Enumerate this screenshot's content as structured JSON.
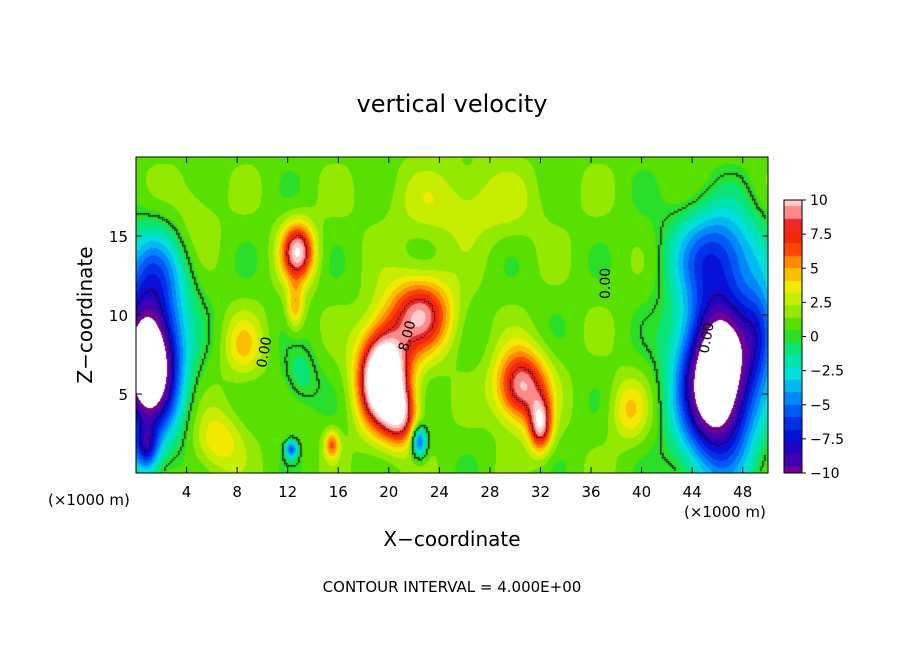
{
  "chart_data": {
    "type": "heatmap",
    "title": "vertical velocity",
    "xlabel": "X−coordinate",
    "ylabel": "Z−coordinate",
    "x_unit_left": "(×1000 m)",
    "x_unit_right": "(×1000 m)",
    "footer": "CONTOUR INTERVAL = 4.000E+00",
    "xlim": [
      0,
      50
    ],
    "ylim": [
      0,
      20
    ],
    "x_ticks": [
      4,
      8,
      12,
      16,
      20,
      24,
      28,
      32,
      36,
      40,
      44,
      48
    ],
    "y_ticks": [
      5,
      10,
      15
    ],
    "colorbar": {
      "range": [
        -10,
        10
      ],
      "ticks": [
        "10",
        "7.5",
        "5",
        "2.5",
        "0",
        "−2.5",
        "−5",
        "−7.5",
        "−10"
      ],
      "tick_values": [
        10,
        7.5,
        5,
        2.5,
        0,
        -2.5,
        -5,
        -7.5,
        -10
      ]
    },
    "contour_labels": [
      {
        "text": "0.00",
        "x": 10.5,
        "y": 7.6,
        "angle": -80
      },
      {
        "text": "8.00",
        "x": 21.8,
        "y": 8.6,
        "angle": -75
      },
      {
        "text": "0.00",
        "x": 37.5,
        "y": 12.0,
        "angle": -90
      },
      {
        "text": "0.00",
        "x": 45.5,
        "y": 8.5,
        "angle": -80
      }
    ],
    "features": [
      {
        "x": 1.0,
        "z": 7.0,
        "sx": 2.5,
        "sz": 4.5,
        "w": -16
      },
      {
        "x": 1.5,
        "z": 13.0,
        "sx": 3.0,
        "sz": 3.0,
        "w": -4
      },
      {
        "x": 0.8,
        "z": 1.5,
        "sx": 1.0,
        "sz": 1.5,
        "w": -6
      },
      {
        "x": 12.8,
        "z": 14.0,
        "sx": 1.3,
        "sz": 1.8,
        "w": 9
      },
      {
        "x": 12.6,
        "z": 10.5,
        "sx": 0.7,
        "sz": 1.5,
        "w": 4
      },
      {
        "x": 19.6,
        "z": 6.0,
        "sx": 1.9,
        "sz": 3.0,
        "w": 15
      },
      {
        "x": 22.5,
        "z": 10.0,
        "sx": 2.5,
        "sz": 2.4,
        "w": 8
      },
      {
        "x": 21.0,
        "z": 3.5,
        "sx": 1.3,
        "sz": 1.8,
        "w": 6
      },
      {
        "x": 30.5,
        "z": 5.5,
        "sx": 2.0,
        "sz": 2.3,
        "w": 9
      },
      {
        "x": 32.0,
        "z": 3.0,
        "sx": 0.9,
        "sz": 1.7,
        "w": 8
      },
      {
        "x": 22.4,
        "z": 2.0,
        "sx": 0.6,
        "sz": 1.0,
        "w": -7
      },
      {
        "x": 12.3,
        "z": 1.5,
        "sx": 0.5,
        "sz": 0.6,
        "w": -6
      },
      {
        "x": 15.5,
        "z": 1.8,
        "sx": 0.6,
        "sz": 0.9,
        "w": 5
      },
      {
        "x": 46.0,
        "z": 6.0,
        "sx": 3.0,
        "sz": 5.5,
        "w": -16
      },
      {
        "x": 46.0,
        "z": 14.0,
        "sx": 3.5,
        "sz": 3.0,
        "w": -6
      },
      {
        "x": 49.5,
        "z": 9.0,
        "sx": 1.5,
        "sz": 3.0,
        "w": -5
      },
      {
        "x": 6.5,
        "z": 2.0,
        "sx": 2.0,
        "sz": 2.0,
        "w": 3
      },
      {
        "x": 39.0,
        "z": 4.0,
        "sx": 1.5,
        "sz": 2.0,
        "w": 3
      },
      {
        "x": 8.5,
        "z": 8.0,
        "sx": 1.5,
        "sz": 2.0,
        "w": 3
      },
      {
        "x": 26.0,
        "z": 17.0,
        "sx": 6.0,
        "sz": 2.5,
        "w": 2
      },
      {
        "x": 13.0,
        "z": 6.0,
        "sx": 1.5,
        "sz": 2.0,
        "w": -2
      },
      {
        "x": 4.5,
        "z": 16.0,
        "sx": 2.0,
        "sz": 3.0,
        "w": 1.5
      }
    ],
    "background_w": 1.0
  }
}
